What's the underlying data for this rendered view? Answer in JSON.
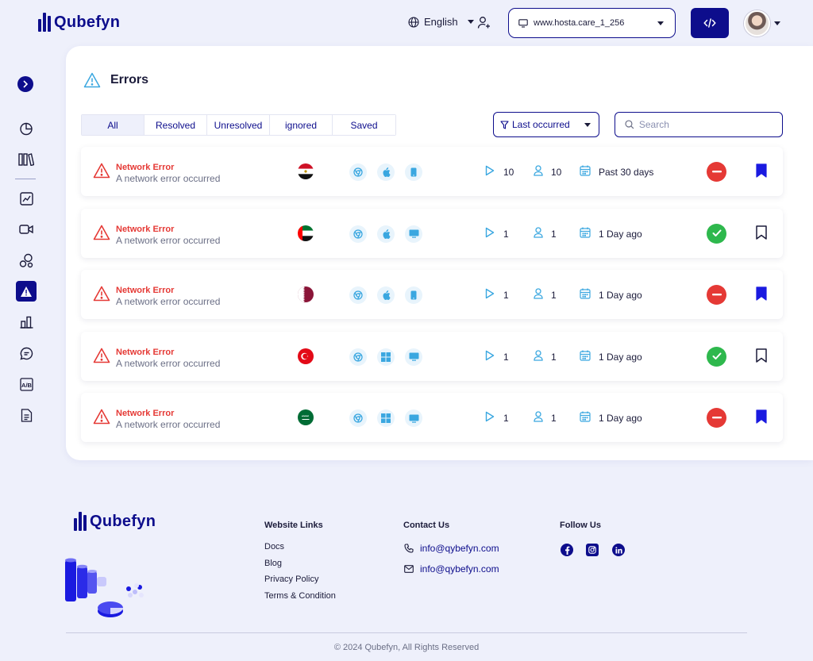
{
  "header": {
    "brand": "Qubefyn",
    "language": "English",
    "site": "www.hosta.care_1_256"
  },
  "sidebar": {
    "items": [
      "pie-chart",
      "library",
      "trend",
      "video",
      "bubbles",
      "errors",
      "bar-chart",
      "chat",
      "ab-test",
      "document"
    ],
    "active": "errors"
  },
  "errors_page": {
    "title": "Errors",
    "tabs": [
      "All",
      "Resolved",
      "Unresolved",
      "ignored",
      "Saved"
    ],
    "active_tab": "All",
    "sort": "Last occurred",
    "search_placeholder": "Search",
    "rows": [
      {
        "title": "Network Error",
        "description": "A network error occurred",
        "country": "egypt",
        "browser": "chrome",
        "os": "apple",
        "device": "mobile",
        "plays": "10",
        "users": "10",
        "time": "Past 30 days",
        "status": "unresolved",
        "saved": true
      },
      {
        "title": "Network Error",
        "description": "A network error occurred",
        "country": "uae",
        "browser": "chrome",
        "os": "apple",
        "device": "desktop",
        "plays": "1",
        "users": "1",
        "time": "1 Day ago",
        "status": "resolved",
        "saved": false
      },
      {
        "title": "Network Error",
        "description": "A network error occurred",
        "country": "qatar",
        "browser": "chrome",
        "os": "apple",
        "device": "mobile",
        "plays": "1",
        "users": "1",
        "time": "1 Day ago",
        "status": "unresolved",
        "saved": true
      },
      {
        "title": "Network Error",
        "description": "A network error occurred",
        "country": "turkey",
        "browser": "chrome",
        "os": "windows",
        "device": "desktop",
        "plays": "1",
        "users": "1",
        "time": "1 Day ago",
        "status": "resolved",
        "saved": false
      },
      {
        "title": "Network Error",
        "description": "A network error occurred",
        "country": "saudi-arabia",
        "browser": "chrome",
        "os": "windows",
        "device": "desktop",
        "plays": "1",
        "users": "1",
        "time": "1 Day ago",
        "status": "unresolved",
        "saved": true
      }
    ]
  },
  "footer": {
    "brand": "Qubefyn",
    "website_links": {
      "heading": "Website Links",
      "links": [
        "Docs",
        "Blog",
        "Privacy Policy",
        "Terms & Condition"
      ]
    },
    "contact": {
      "heading": "Contact Us",
      "phone": "info@qybefyn.com",
      "email": "info@qybefyn.com"
    },
    "follow": {
      "heading": "Follow Us",
      "networks": [
        "facebook",
        "instagram",
        "linkedin"
      ]
    },
    "copyright": "© 2024 Qubefyn, All Rights Reserved"
  },
  "colors": {
    "brand": "#0d0d8c",
    "error": "#e53935",
    "success": "#2eb84d",
    "background": "#eef0fb"
  }
}
